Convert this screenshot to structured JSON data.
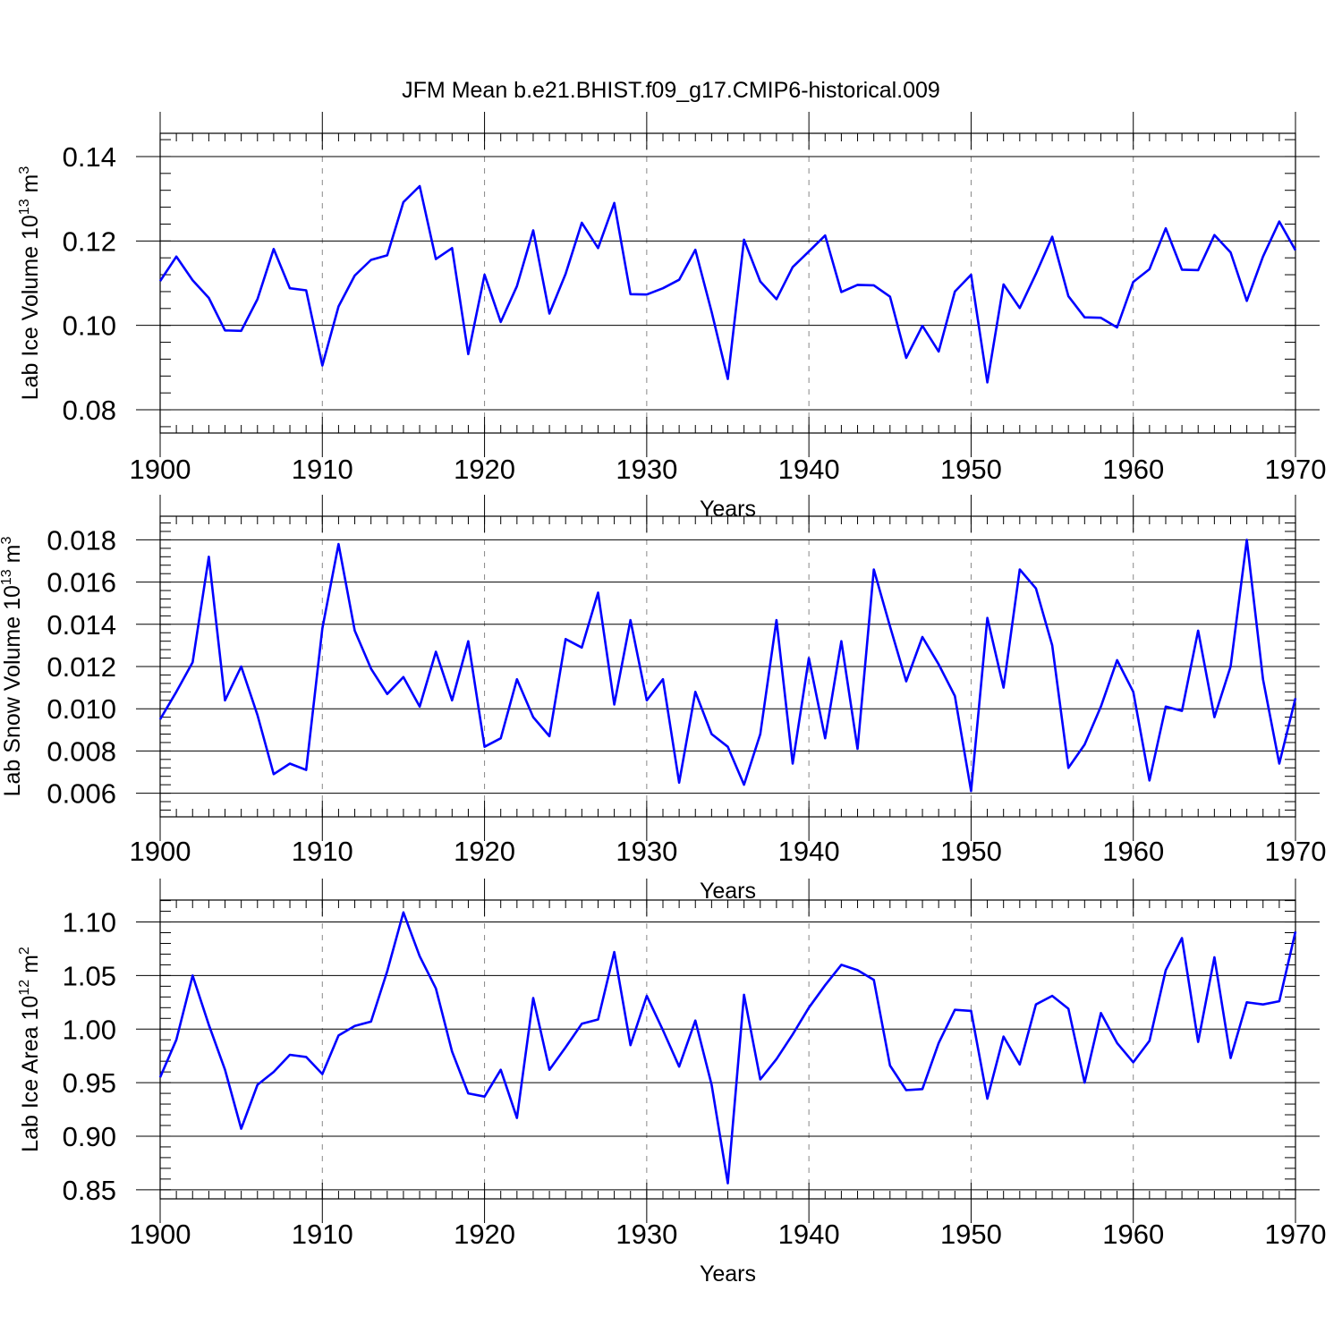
{
  "colors": {
    "line": "#0000ff",
    "axis": "#000000",
    "grid": "#888888"
  },
  "chart_data": [
    {
      "type": "line",
      "panel_title": "JFM Mean b.e21.BHIST.f09_g17.CMIP6-historical.009",
      "ylabel": "Lab Ice Volume",
      "ylabel_scale_base": "10",
      "ylabel_scale_exp": "13",
      "ylabel_unit": "m",
      "ylabel_unit_exp": "3",
      "xlabel": "Years",
      "xlim": [
        1900,
        1970
      ],
      "ylim": [
        0.0745,
        0.1455
      ],
      "x_ticks": [
        1900,
        1910,
        1920,
        1930,
        1940,
        1950,
        1960,
        1970
      ],
      "x_tick_labels": [
        "1900",
        "1910",
        "1920",
        "1930",
        "1940",
        "1950",
        "1960",
        "1970"
      ],
      "y_ticks": [
        0.08,
        0.1,
        0.12,
        0.14
      ],
      "y_tick_labels": [
        "0.08",
        "0.10",
        "0.12",
        "0.14"
      ],
      "y_minor_step": 0.004,
      "x_minor_step": 1,
      "grid": "vertical dashed at major x ticks",
      "x_start": 1900,
      "values": [
        0.1105,
        0.1163,
        0.1107,
        0.1065,
        0.0988,
        0.0987,
        0.1062,
        0.1181,
        0.1088,
        0.1083,
        0.0905,
        0.1045,
        0.1118,
        0.1155,
        0.1166,
        0.1292,
        0.133,
        0.1157,
        0.1183,
        0.0932,
        0.112,
        0.1008,
        0.1093,
        0.1225,
        0.1028,
        0.1122,
        0.1243,
        0.1183,
        0.129,
        0.1074,
        0.1073,
        0.1088,
        0.1108,
        0.1179,
        0.1032,
        0.0873,
        0.1203,
        0.1104,
        0.1062,
        0.1138,
        0.1175,
        0.1213,
        0.1079,
        0.1096,
        0.1095,
        0.1068,
        0.0923,
        0.0999,
        0.0938,
        0.108,
        0.112,
        0.0865,
        0.1097,
        0.1041,
        0.1122,
        0.121,
        0.1069,
        0.1019,
        0.1018,
        0.0995,
        0.1103,
        0.1133,
        0.123,
        0.1132,
        0.1131,
        0.1214,
        0.1173,
        0.1058,
        0.1163,
        0.1246,
        0.1178
      ]
    },
    {
      "type": "line",
      "ylabel": "Lab Snow Volume",
      "ylabel_scale_base": "10",
      "ylabel_scale_exp": "13",
      "ylabel_unit": "m",
      "ylabel_unit_exp": "3",
      "xlabel": "Years",
      "xlim": [
        1900,
        1970
      ],
      "ylim": [
        0.00488,
        0.01912
      ],
      "x_ticks": [
        1900,
        1910,
        1920,
        1930,
        1940,
        1950,
        1960,
        1970
      ],
      "x_tick_labels": [
        "1900",
        "1910",
        "1920",
        "1930",
        "1940",
        "1950",
        "1960",
        "1970"
      ],
      "y_ticks": [
        0.006,
        0.008,
        0.01,
        0.012,
        0.014,
        0.016,
        0.018
      ],
      "y_tick_labels": [
        "0.006",
        "0.008",
        "0.010",
        "0.012",
        "0.014",
        "0.016",
        "0.018"
      ],
      "y_minor_step": 0.0004,
      "x_minor_step": 1,
      "grid": "vertical dashed at major x ticks",
      "x_start": 1900,
      "values": [
        0.0095,
        0.0108,
        0.0122,
        0.0172,
        0.0104,
        0.012,
        0.0097,
        0.0069,
        0.0074,
        0.0071,
        0.0138,
        0.0178,
        0.0137,
        0.0119,
        0.0107,
        0.0115,
        0.0101,
        0.0127,
        0.0104,
        0.0132,
        0.0082,
        0.0086,
        0.0114,
        0.0096,
        0.0087,
        0.0133,
        0.0129,
        0.0155,
        0.0102,
        0.0142,
        0.0104,
        0.0114,
        0.0065,
        0.0108,
        0.0088,
        0.0082,
        0.0064,
        0.0088,
        0.0142,
        0.0074,
        0.0124,
        0.0086,
        0.0132,
        0.0081,
        0.0166,
        0.0139,
        0.0113,
        0.0134,
        0.0121,
        0.0106,
        0.0061,
        0.0143,
        0.011,
        0.0166,
        0.0157,
        0.013,
        0.0072,
        0.0083,
        0.0101,
        0.0123,
        0.0108,
        0.0066,
        0.0101,
        0.0099,
        0.0137,
        0.0096,
        0.012,
        0.018,
        0.0114,
        0.0074,
        0.0105
      ]
    },
    {
      "type": "line",
      "ylabel": "Lab Ice Area",
      "ylabel_scale_base": "10",
      "ylabel_scale_exp": "12",
      "ylabel_unit": "m",
      "ylabel_unit_exp": "2",
      "xlabel": "Years",
      "xlim": [
        1900,
        1970
      ],
      "ylim": [
        0.8415,
        1.1205
      ],
      "x_ticks": [
        1900,
        1910,
        1920,
        1930,
        1940,
        1950,
        1960,
        1970
      ],
      "x_tick_labels": [
        "1900",
        "1910",
        "1920",
        "1930",
        "1940",
        "1950",
        "1960",
        "1970"
      ],
      "y_ticks": [
        0.85,
        0.9,
        0.95,
        1.0,
        1.05,
        1.1
      ],
      "y_tick_labels": [
        "0.85",
        "0.90",
        "0.95",
        "1.00",
        "1.05",
        "1.10"
      ],
      "y_minor_step": 0.01,
      "x_minor_step": 1,
      "grid": "vertical dashed at major x ticks",
      "x_start": 1900,
      "values": [
        0.955,
        0.99,
        1.05,
        1.004,
        0.962,
        0.907,
        0.948,
        0.96,
        0.976,
        0.974,
        0.958,
        0.994,
        1.003,
        1.007,
        1.054,
        1.109,
        1.068,
        1.038,
        0.979,
        0.94,
        0.937,
        0.962,
        0.917,
        1.029,
        0.962,
        0.983,
        1.005,
        1.009,
        1.072,
        0.985,
        1.031,
        0.999,
        0.965,
        1.008,
        0.948,
        0.856,
        1.032,
        0.953,
        0.972,
        0.995,
        1.02,
        1.041,
        1.06,
        1.055,
        1.046,
        0.966,
        0.943,
        0.944,
        0.987,
        1.018,
        1.017,
        0.935,
        0.993,
        0.967,
        1.023,
        1.031,
        1.019,
        0.95,
        1.015,
        0.987,
        0.969,
        0.989,
        1.055,
        1.085,
        0.988,
        1.067,
        0.973,
        1.025,
        1.023,
        1.026,
        1.091
      ]
    }
  ]
}
